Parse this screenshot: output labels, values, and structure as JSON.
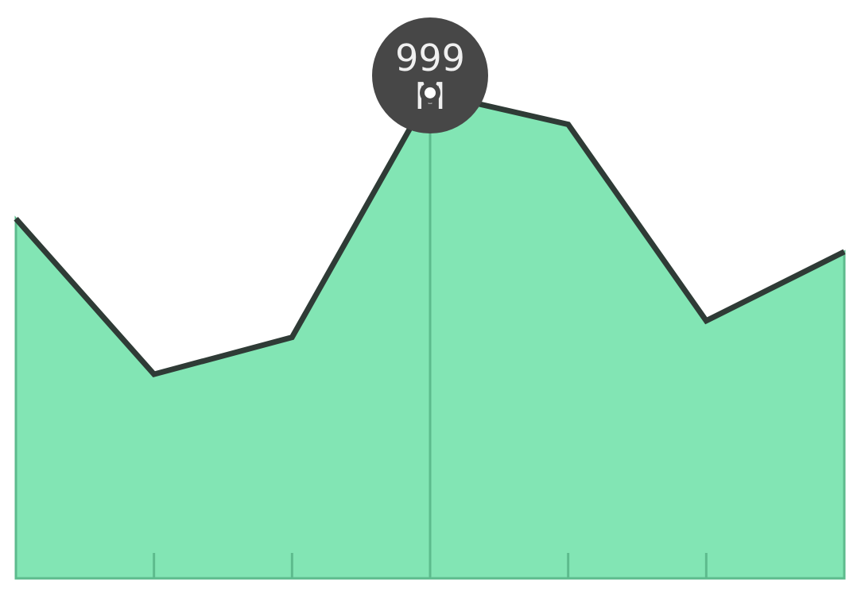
{
  "chart_data": {
    "type": "area",
    "categories": [
      "",
      "",
      "",
      "",
      "",
      "",
      ""
    ],
    "values": [
      740,
      420,
      496,
      999,
      934,
      530,
      672
    ],
    "ylim": [
      0,
      1190
    ],
    "grid": false,
    "legend": "none",
    "highlight_index": 3,
    "tooltip": {
      "line1": "999",
      "line2": "M"
    },
    "colors": {
      "area_fill": "#82e5b4",
      "line": "#2f3b36",
      "tooltip_bg": "#474747",
      "tooltip_text": "#f0f0f0",
      "axis": "#5dbb8d"
    }
  }
}
